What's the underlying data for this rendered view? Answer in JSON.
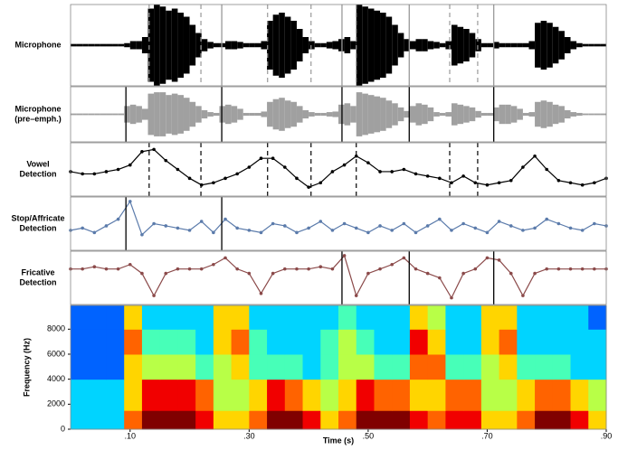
{
  "chart_data": [
    {
      "type": "waveform",
      "label": [
        "Microphone"
      ],
      "color": "#000000",
      "xlim": [
        0,
        0.9
      ],
      "ylim": [
        -1,
        1
      ],
      "x": [
        0.005,
        0.015,
        0.025,
        0.035,
        0.045,
        0.055,
        0.065,
        0.075,
        0.085,
        0.095,
        0.105,
        0.115,
        0.125,
        0.135,
        0.145,
        0.155,
        0.165,
        0.175,
        0.185,
        0.195,
        0.205,
        0.215,
        0.225,
        0.235,
        0.245,
        0.255,
        0.265,
        0.275,
        0.285,
        0.295,
        0.305,
        0.315,
        0.325,
        0.335,
        0.345,
        0.355,
        0.365,
        0.375,
        0.385,
        0.395,
        0.405,
        0.415,
        0.425,
        0.435,
        0.445,
        0.455,
        0.465,
        0.475,
        0.485,
        0.495,
        0.505,
        0.515,
        0.525,
        0.535,
        0.545,
        0.555,
        0.565,
        0.575,
        0.585,
        0.595,
        0.605,
        0.615,
        0.625,
        0.635,
        0.645,
        0.655,
        0.665,
        0.675,
        0.685,
        0.695,
        0.705,
        0.715,
        0.725,
        0.735,
        0.745,
        0.755,
        0.765,
        0.775,
        0.785,
        0.795,
        0.805,
        0.815,
        0.825,
        0.835,
        0.845,
        0.855,
        0.865,
        0.875,
        0.885,
        0.895
      ],
      "values": [
        0.03,
        0.03,
        0.03,
        0.03,
        0.03,
        0.03,
        0.03,
        0.03,
        0.03,
        0.05,
        0.1,
        0.1,
        0.2,
        0.9,
        1.0,
        0.95,
        0.85,
        0.9,
        0.8,
        0.7,
        0.5,
        0.3,
        0.15,
        0.08,
        0.05,
        0.05,
        0.1,
        0.1,
        0.08,
        0.05,
        0.05,
        0.05,
        0.1,
        0.6,
        0.75,
        0.8,
        0.7,
        0.6,
        0.4,
        0.2,
        0.1,
        0.05,
        0.05,
        0.08,
        0.1,
        0.15,
        0.2,
        0.1,
        1.0,
        0.95,
        0.9,
        0.85,
        0.8,
        0.7,
        0.5,
        0.3,
        0.15,
        0.1,
        0.15,
        0.15,
        0.1,
        0.08,
        0.05,
        0.1,
        0.5,
        0.45,
        0.4,
        0.3,
        0.15,
        0.05,
        0.05,
        0.08,
        0.05,
        0.05,
        0.05,
        0.05,
        0.05,
        0.1,
        0.55,
        0.6,
        0.55,
        0.45,
        0.35,
        0.2,
        0.1,
        0.05,
        0.03,
        0.03,
        0.03,
        0.03
      ],
      "dashed": [
        0.132,
        0.219,
        0.331,
        0.404,
        0.48,
        0.637,
        0.684
      ],
      "dashed_color": "#999999",
      "solid": [
        0.254,
        0.456,
        0.569,
        0.711
      ],
      "solid_color": "#999999"
    },
    {
      "type": "waveform",
      "label": [
        "Microphone",
        "(pre–emph.)"
      ],
      "color": "#a0a0a0",
      "xlim": [
        0,
        0.9
      ],
      "ylim": [
        -1,
        1
      ],
      "x": [
        0.005,
        0.015,
        0.025,
        0.035,
        0.045,
        0.055,
        0.065,
        0.075,
        0.085,
        0.095,
        0.105,
        0.115,
        0.125,
        0.135,
        0.145,
        0.155,
        0.165,
        0.175,
        0.185,
        0.195,
        0.205,
        0.215,
        0.225,
        0.235,
        0.245,
        0.255,
        0.265,
        0.275,
        0.285,
        0.295,
        0.305,
        0.315,
        0.325,
        0.335,
        0.345,
        0.355,
        0.365,
        0.375,
        0.385,
        0.395,
        0.405,
        0.415,
        0.425,
        0.435,
        0.445,
        0.455,
        0.465,
        0.475,
        0.485,
        0.495,
        0.505,
        0.515,
        0.525,
        0.535,
        0.545,
        0.555,
        0.565,
        0.575,
        0.585,
        0.595,
        0.605,
        0.615,
        0.625,
        0.635,
        0.645,
        0.655,
        0.665,
        0.675,
        0.685,
        0.695,
        0.705,
        0.715,
        0.725,
        0.735,
        0.745,
        0.755,
        0.765,
        0.775,
        0.785,
        0.795,
        0.805,
        0.815,
        0.825,
        0.835,
        0.845,
        0.855,
        0.865,
        0.875,
        0.885,
        0.895
      ],
      "values": [
        0.03,
        0.03,
        0.03,
        0.03,
        0.03,
        0.03,
        0.03,
        0.03,
        0.03,
        0.3,
        0.35,
        0.3,
        0.2,
        0.75,
        0.8,
        0.8,
        0.7,
        0.75,
        0.7,
        0.6,
        0.45,
        0.3,
        0.15,
        0.08,
        0.05,
        0.3,
        0.35,
        0.3,
        0.2,
        0.05,
        0.05,
        0.05,
        0.1,
        0.45,
        0.55,
        0.6,
        0.5,
        0.45,
        0.3,
        0.15,
        0.08,
        0.05,
        0.05,
        0.08,
        0.1,
        0.35,
        0.4,
        0.3,
        0.8,
        0.75,
        0.7,
        0.65,
        0.6,
        0.5,
        0.4,
        0.25,
        0.12,
        0.3,
        0.4,
        0.35,
        0.25,
        0.08,
        0.05,
        0.08,
        0.4,
        0.35,
        0.3,
        0.25,
        0.12,
        0.05,
        0.05,
        0.25,
        0.35,
        0.35,
        0.3,
        0.2,
        0.05,
        0.08,
        0.45,
        0.5,
        0.45,
        0.35,
        0.3,
        0.15,
        0.08,
        0.05,
        0.03,
        0.03,
        0.03,
        0.03
      ],
      "solid": [
        0.093,
        0.254,
        0.456,
        0.569,
        0.711
      ],
      "solid_color": "#000000"
    },
    {
      "type": "line",
      "label": [
        "Vowel",
        "Detection"
      ],
      "color": "#000000",
      "xlim": [
        0,
        0.9
      ],
      "ylim": [
        -0.1,
        1.1
      ],
      "x": [
        0,
        0.02,
        0.04,
        0.06,
        0.08,
        0.1,
        0.12,
        0.14,
        0.16,
        0.18,
        0.2,
        0.22,
        0.24,
        0.26,
        0.28,
        0.3,
        0.32,
        0.34,
        0.36,
        0.38,
        0.4,
        0.42,
        0.44,
        0.46,
        0.48,
        0.5,
        0.52,
        0.54,
        0.56,
        0.58,
        0.6,
        0.62,
        0.64,
        0.66,
        0.68,
        0.7,
        0.72,
        0.74,
        0.76,
        0.78,
        0.8,
        0.82,
        0.84,
        0.86,
        0.88,
        0.9
      ],
      "values": [
        0.45,
        0.4,
        0.4,
        0.45,
        0.5,
        0.6,
        0.9,
        0.95,
        0.7,
        0.5,
        0.3,
        0.15,
        0.2,
        0.3,
        0.4,
        0.55,
        0.75,
        0.75,
        0.55,
        0.3,
        0.1,
        0.2,
        0.45,
        0.6,
        0.8,
        0.65,
        0.45,
        0.45,
        0.5,
        0.4,
        0.35,
        0.3,
        0.2,
        0.35,
        0.2,
        0.15,
        0.2,
        0.25,
        0.55,
        0.8,
        0.5,
        0.25,
        0.2,
        0.15,
        0.2,
        0.3
      ],
      "dashed": [
        0.132,
        0.219,
        0.331,
        0.404,
        0.48,
        0.637,
        0.684
      ],
      "dashed_color": "#000000"
    },
    {
      "type": "line",
      "label": [
        "Stop/Affricate",
        "Detection"
      ],
      "color": "#5b7bab",
      "xlim": [
        0,
        0.9
      ],
      "ylim": [
        -0.1,
        1.1
      ],
      "x": [
        0,
        0.02,
        0.04,
        0.06,
        0.08,
        0.1,
        0.12,
        0.14,
        0.16,
        0.18,
        0.2,
        0.22,
        0.24,
        0.26,
        0.28,
        0.3,
        0.32,
        0.34,
        0.36,
        0.38,
        0.4,
        0.42,
        0.44,
        0.46,
        0.48,
        0.5,
        0.52,
        0.54,
        0.56,
        0.58,
        0.6,
        0.62,
        0.64,
        0.66,
        0.68,
        0.7,
        0.72,
        0.74,
        0.76,
        0.78,
        0.8,
        0.82,
        0.84,
        0.86,
        0.88,
        0.9
      ],
      "values": [
        0.35,
        0.4,
        0.3,
        0.45,
        0.6,
        1.0,
        0.25,
        0.5,
        0.45,
        0.4,
        0.35,
        0.55,
        0.3,
        0.6,
        0.4,
        0.35,
        0.3,
        0.5,
        0.45,
        0.3,
        0.4,
        0.55,
        0.35,
        0.5,
        0.4,
        0.3,
        0.45,
        0.35,
        0.5,
        0.3,
        0.45,
        0.6,
        0.35,
        0.5,
        0.4,
        0.3,
        0.55,
        0.45,
        0.35,
        0.4,
        0.6,
        0.5,
        0.4,
        0.35,
        0.5,
        0.45
      ],
      "solid": [
        0.093,
        0.254
      ],
      "solid_color": "#000000"
    },
    {
      "type": "line",
      "label": [
        "Fricative",
        "Detection"
      ],
      "color": "#8b4a4a",
      "xlim": [
        0,
        0.9
      ],
      "ylim": [
        -0.1,
        1.1
      ],
      "x": [
        0,
        0.02,
        0.04,
        0.06,
        0.08,
        0.1,
        0.12,
        0.14,
        0.16,
        0.18,
        0.2,
        0.22,
        0.24,
        0.26,
        0.28,
        0.3,
        0.32,
        0.34,
        0.36,
        0.38,
        0.4,
        0.42,
        0.44,
        0.46,
        0.48,
        0.5,
        0.52,
        0.54,
        0.56,
        0.58,
        0.6,
        0.62,
        0.64,
        0.66,
        0.68,
        0.7,
        0.72,
        0.74,
        0.76,
        0.78,
        0.8,
        0.82,
        0.84,
        0.86,
        0.88,
        0.9
      ],
      "values": [
        0.7,
        0.7,
        0.75,
        0.7,
        0.7,
        0.8,
        0.6,
        0.1,
        0.6,
        0.7,
        0.7,
        0.7,
        0.8,
        0.95,
        0.7,
        0.6,
        0.15,
        0.6,
        0.7,
        0.7,
        0.7,
        0.75,
        0.7,
        1.0,
        0.1,
        0.6,
        0.7,
        0.8,
        0.95,
        0.7,
        0.6,
        0.5,
        0.05,
        0.6,
        0.7,
        0.95,
        0.9,
        0.6,
        0.1,
        0.6,
        0.7,
        0.7,
        0.7,
        0.7,
        0.7,
        0.7
      ],
      "solid": [
        0.456,
        0.569,
        0.711
      ],
      "solid_color": "#000000"
    },
    {
      "type": "heatmap",
      "ylabel": "Frequency (Hz)",
      "xlabel": "Time (s)",
      "xlim": [
        0,
        0.9
      ],
      "ylim": [
        0,
        9900
      ],
      "clim": [
        0,
        9
      ],
      "xticks": [
        {
          "value": 0.1,
          "label": ".10"
        },
        {
          "value": 0.3,
          "label": ".30"
        },
        {
          "value": 0.5,
          "label": ".50"
        },
        {
          "value": 0.7,
          "label": ".70"
        },
        {
          "value": 0.9,
          "label": ".90"
        }
      ],
      "yticks": [
        0,
        2000,
        4000,
        6000,
        8000
      ],
      "x_bins": [
        0,
        0.03,
        0.06,
        0.09,
        0.12,
        0.15,
        0.18,
        0.21,
        0.24,
        0.27,
        0.3,
        0.33,
        0.36,
        0.39,
        0.42,
        0.45,
        0.48,
        0.51,
        0.54,
        0.57,
        0.6,
        0.63,
        0.66,
        0.69,
        0.72,
        0.75,
        0.78,
        0.81,
        0.84,
        0.87,
        0.9
      ],
      "y_bins": [
        0,
        1500,
        4000,
        6000,
        8000,
        9900
      ],
      "values": [
        [
          3,
          3,
          3,
          7,
          9,
          9,
          9,
          8,
          6,
          6,
          7,
          9,
          9,
          8,
          6,
          7,
          9,
          9,
          9,
          8,
          7,
          8,
          8,
          6,
          6,
          7,
          9,
          9,
          8,
          6
        ],
        [
          3,
          3,
          3,
          6,
          8,
          8,
          8,
          7,
          5,
          5,
          6,
          8,
          7,
          6,
          5,
          6,
          8,
          7,
          7,
          6,
          6,
          7,
          7,
          5,
          5,
          6,
          7,
          7,
          6,
          5
        ],
        [
          2,
          2,
          2,
          6,
          5,
          5,
          5,
          4,
          5,
          6,
          4,
          4,
          4,
          3,
          4,
          5,
          5,
          4,
          4,
          7,
          7,
          4,
          4,
          5,
          6,
          4,
          4,
          4,
          3,
          3
        ],
        [
          2,
          2,
          2,
          7,
          4,
          4,
          4,
          3,
          6,
          7,
          4,
          3,
          3,
          3,
          4,
          5,
          4,
          3,
          3,
          8,
          6,
          3,
          3,
          6,
          7,
          3,
          3,
          3,
          3,
          3
        ],
        [
          2,
          2,
          2,
          6,
          3,
          3,
          3,
          3,
          6,
          6,
          3,
          3,
          3,
          3,
          3,
          4,
          3,
          3,
          3,
          6,
          5,
          3,
          3,
          6,
          6,
          3,
          3,
          3,
          3,
          2
        ]
      ]
    }
  ]
}
